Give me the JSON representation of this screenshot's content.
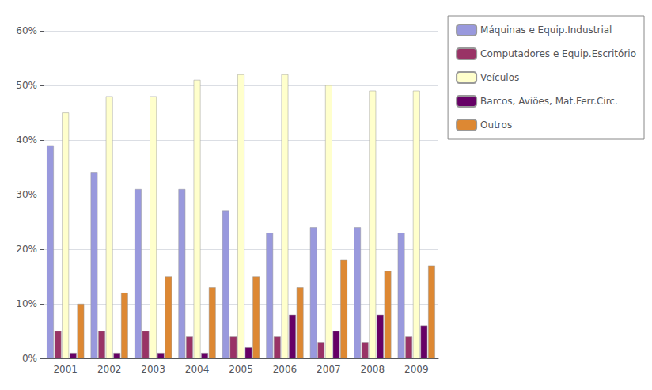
{
  "chart_data": {
    "type": "bar",
    "categories": [
      "2001",
      "2002",
      "2003",
      "2004",
      "2005",
      "2006",
      "2007",
      "2008",
      "2009"
    ],
    "series": [
      {
        "name": "Máquinas e Equip.Industrial",
        "color": "#9999dd",
        "values": [
          39,
          34,
          31,
          31,
          27,
          23,
          24,
          24,
          23
        ]
      },
      {
        "name": "Computadores e Equip.Escritório",
        "color": "#993366",
        "values": [
          5,
          5,
          5,
          4,
          4,
          4,
          3,
          3,
          4
        ]
      },
      {
        "name": "Veículos",
        "color": "#ffffcc",
        "values": [
          45,
          48,
          48,
          51,
          52,
          52,
          50,
          49,
          49
        ]
      },
      {
        "name": "Barcos, Aviões, Mat.Ferr.Circ.",
        "color": "#660066",
        "values": [
          1,
          1,
          1,
          1,
          2,
          8,
          5,
          8,
          6
        ]
      },
      {
        "name": "Outros",
        "color": "#dd8833",
        "values": [
          10,
          12,
          15,
          13,
          15,
          13,
          18,
          16,
          17
        ]
      }
    ],
    "ylim": [
      0,
      62
    ],
    "yticks": [
      {
        "value": 0,
        "label": "0%"
      },
      {
        "value": 10,
        "label": "10%"
      },
      {
        "value": 20,
        "label": "20%"
      },
      {
        "value": 30,
        "label": "30%"
      },
      {
        "value": 40,
        "label": "40%"
      },
      {
        "value": 50,
        "label": "50%"
      },
      {
        "value": 60,
        "label": "60%"
      }
    ],
    "grid": true,
    "legend": "right"
  }
}
